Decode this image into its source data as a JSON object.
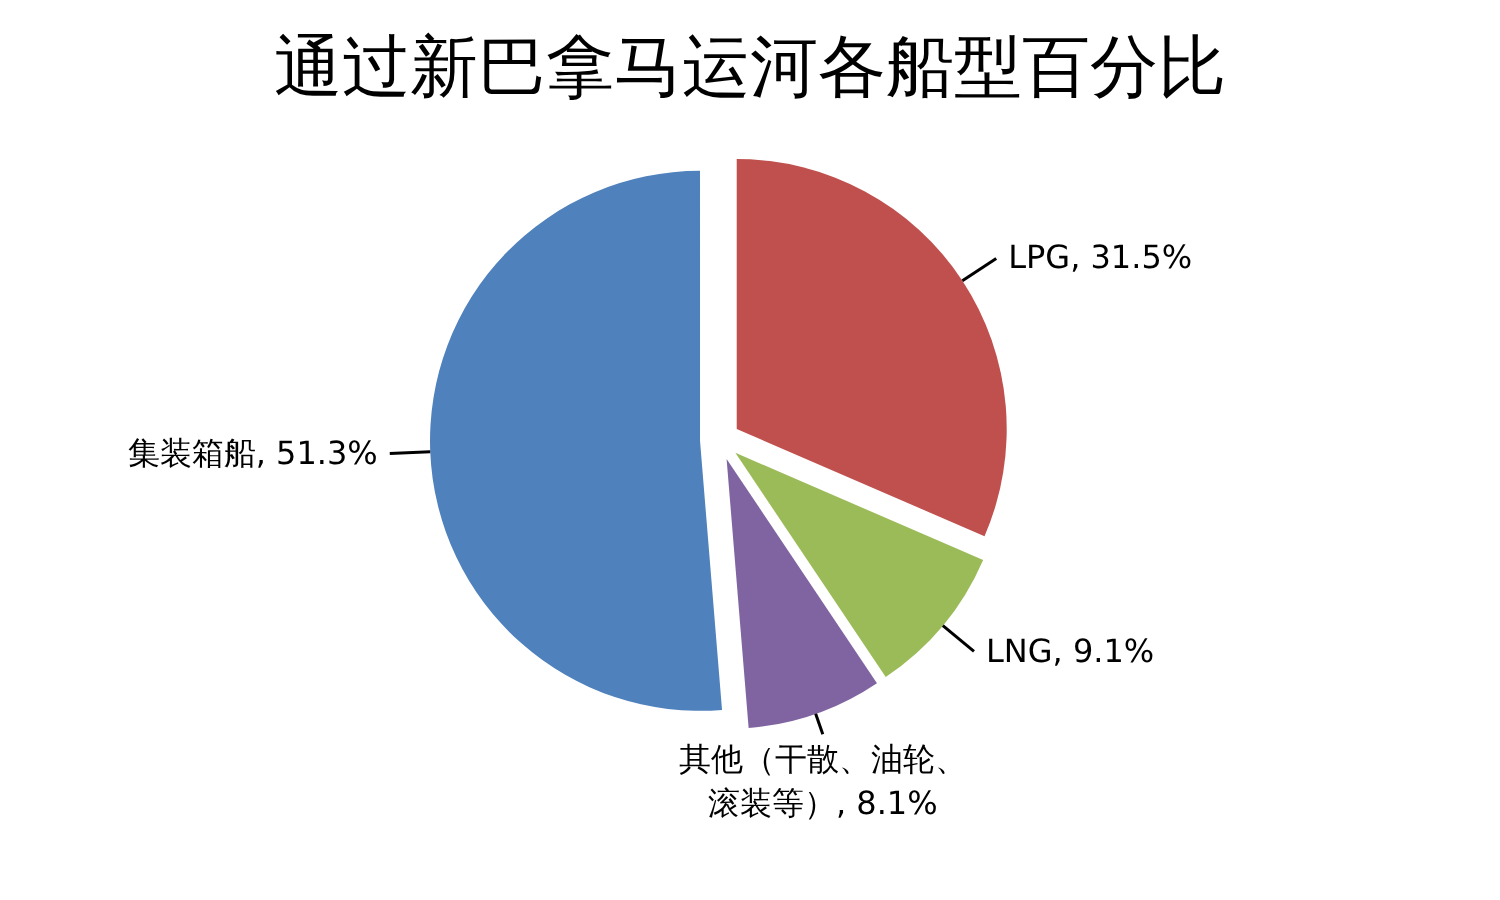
{
  "chart_data": {
    "type": "pie",
    "title": "通过新巴拿马运河各船型百分比",
    "categories": [
      "LPG",
      "LNG",
      "其他（干散、油轮、滚装等）",
      "集装箱船"
    ],
    "values": [
      31.5,
      9.1,
      8.1,
      51.3
    ],
    "colors": [
      "#c0504d",
      "#9bbb59",
      "#8064a2",
      "#4f81bd"
    ],
    "value_labels": [
      "31.5%",
      "9.1%",
      "8.1%",
      "51.3%"
    ]
  }
}
